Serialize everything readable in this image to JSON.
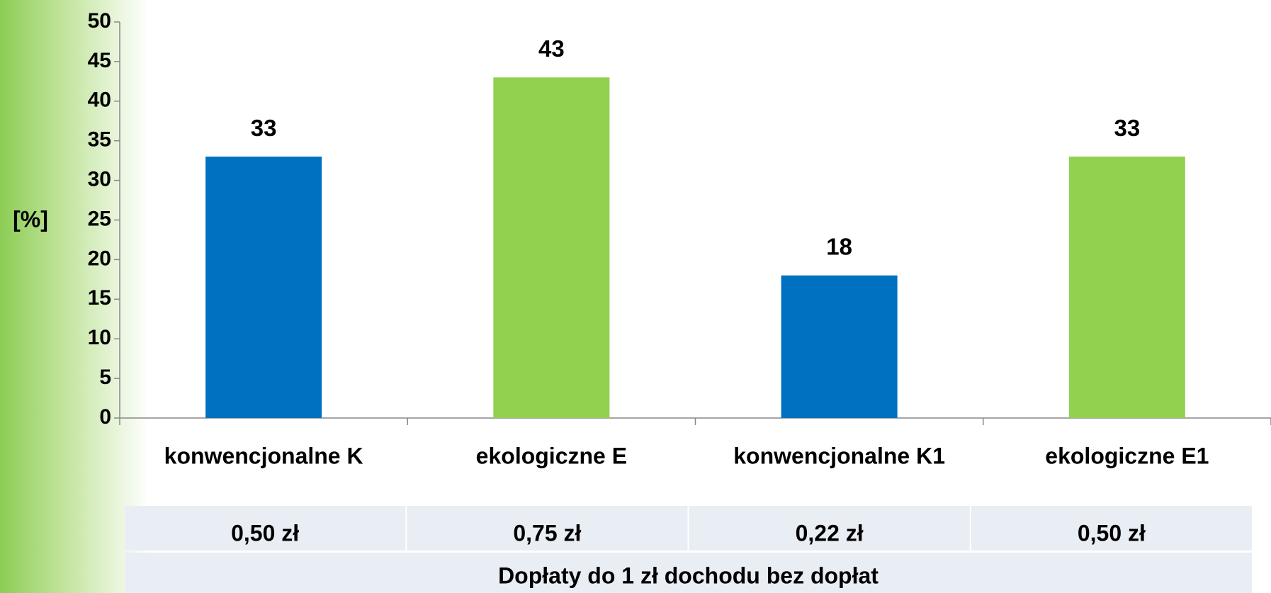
{
  "chart_data": {
    "type": "bar",
    "y_label": "[%]",
    "categories": [
      "konwencjonalne K",
      "ekologiczne E",
      "konwencjonalne K1",
      "ekologiczne E1"
    ],
    "values": [
      33,
      43,
      18,
      33
    ],
    "colors": [
      "#0070c0",
      "#92d050",
      "#0070c0",
      "#92d050"
    ],
    "ylim": [
      0,
      50
    ],
    "yticks": [
      0,
      5,
      10,
      15,
      20,
      25,
      30,
      35,
      40,
      45,
      50
    ],
    "grid": false
  },
  "table": {
    "cells": [
      "0,50 zł",
      "0,75 zł",
      "0,22 zł",
      "0,50 zł"
    ],
    "caption": "Dopłaty do 1 zł dochodu bez dopłat"
  }
}
